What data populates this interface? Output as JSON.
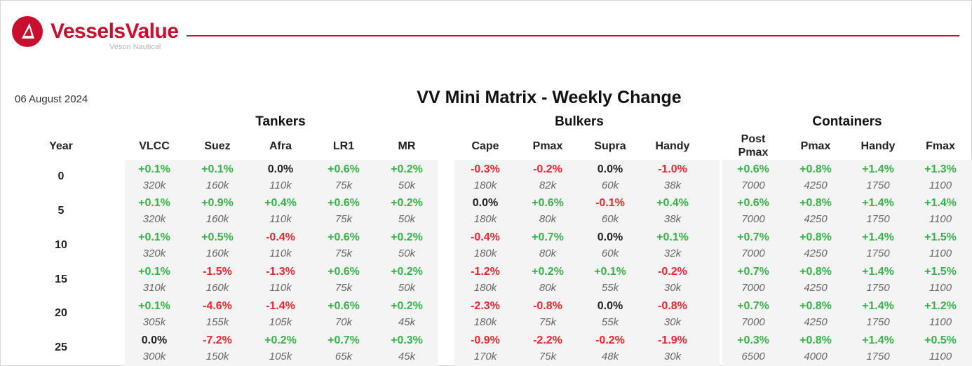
{
  "brand": {
    "name": "VesselsValue",
    "sub": "Veson Nautical",
    "accent": "#c8102e"
  },
  "report": {
    "date": "06 August 2024",
    "title": "VV Mini Matrix - Weekly Change"
  },
  "colors": {
    "positive": "#37b34a",
    "negative": "#e8262e",
    "neutral": "#222222",
    "size_text": "#666666"
  },
  "year_header": "Year",
  "years": [
    "0",
    "5",
    "10",
    "15",
    "20",
    "25"
  ],
  "sections": [
    {
      "title": "Tankers",
      "columns": [
        "VLCC",
        "Suez",
        "Afra",
        "LR1",
        "MR"
      ],
      "rows": [
        [
          [
            "+0.1%",
            "320k"
          ],
          [
            "+0.1%",
            "160k"
          ],
          [
            "0.0%",
            "110k"
          ],
          [
            "+0.6%",
            "75k"
          ],
          [
            "+0.2%",
            "50k"
          ]
        ],
        [
          [
            "+0.1%",
            "320k"
          ],
          [
            "+0.9%",
            "160k"
          ],
          [
            "+0.4%",
            "110k"
          ],
          [
            "+0.6%",
            "75k"
          ],
          [
            "+0.2%",
            "50k"
          ]
        ],
        [
          [
            "+0.1%",
            "320k"
          ],
          [
            "+0.5%",
            "160k"
          ],
          [
            "-0.4%",
            "110k"
          ],
          [
            "+0.6%",
            "75k"
          ],
          [
            "+0.2%",
            "50k"
          ]
        ],
        [
          [
            "+0.1%",
            "310k"
          ],
          [
            "-1.5%",
            "160k"
          ],
          [
            "-1.3%",
            "110k"
          ],
          [
            "+0.6%",
            "75k"
          ],
          [
            "+0.2%",
            "50k"
          ]
        ],
        [
          [
            "+0.1%",
            "305k"
          ],
          [
            "-4.6%",
            "155k"
          ],
          [
            "-1.4%",
            "105k"
          ],
          [
            "+0.6%",
            "70k"
          ],
          [
            "+0.2%",
            "45k"
          ]
        ],
        [
          [
            "0.0%",
            "300k"
          ],
          [
            "-7.2%",
            "150k"
          ],
          [
            "+0.2%",
            "105k"
          ],
          [
            "+0.7%",
            "65k"
          ],
          [
            "+0.3%",
            "45k"
          ]
        ]
      ]
    },
    {
      "title": "Bulkers",
      "columns": [
        "Cape",
        "Pmax",
        "Supra",
        "Handy"
      ],
      "rows": [
        [
          [
            "-0.3%",
            "180k"
          ],
          [
            "-0.2%",
            "82k"
          ],
          [
            "0.0%",
            "60k"
          ],
          [
            "-1.0%",
            "38k"
          ]
        ],
        [
          [
            "0.0%",
            "180k"
          ],
          [
            "+0.6%",
            "80k"
          ],
          [
            "-0.1%",
            "60k"
          ],
          [
            "+0.4%",
            "38k"
          ]
        ],
        [
          [
            "-0.4%",
            "180k"
          ],
          [
            "+0.7%",
            "80k"
          ],
          [
            "0.0%",
            "60k"
          ],
          [
            "+0.1%",
            "32k"
          ]
        ],
        [
          [
            "-1.2%",
            "180k"
          ],
          [
            "+0.2%",
            "80k"
          ],
          [
            "+0.1%",
            "55k"
          ],
          [
            "-0.2%",
            "30k"
          ]
        ],
        [
          [
            "-2.3%",
            "180k"
          ],
          [
            "-0.8%",
            "75k"
          ],
          [
            "0.0%",
            "55k"
          ],
          [
            "-0.8%",
            "30k"
          ]
        ],
        [
          [
            "-0.9%",
            "170k"
          ],
          [
            "-2.2%",
            "75k"
          ],
          [
            "-0.2%",
            "48k"
          ],
          [
            "-1.9%",
            "30k"
          ]
        ]
      ]
    },
    {
      "title": "Containers",
      "columns": [
        "Post\nPmax",
        "Pmax",
        "Handy",
        "Fmax"
      ],
      "rows": [
        [
          [
            "+0.6%",
            "7000"
          ],
          [
            "+0.8%",
            "4250"
          ],
          [
            "+1.4%",
            "1750"
          ],
          [
            "+1.3%",
            "1100"
          ]
        ],
        [
          [
            "+0.6%",
            "7000"
          ],
          [
            "+0.8%",
            "4250"
          ],
          [
            "+1.4%",
            "1750"
          ],
          [
            "+1.4%",
            "1100"
          ]
        ],
        [
          [
            "+0.7%",
            "7000"
          ],
          [
            "+0.8%",
            "4250"
          ],
          [
            "+1.4%",
            "1750"
          ],
          [
            "+1.5%",
            "1100"
          ]
        ],
        [
          [
            "+0.7%",
            "7000"
          ],
          [
            "+0.8%",
            "4250"
          ],
          [
            "+1.4%",
            "1750"
          ],
          [
            "+1.5%",
            "1100"
          ]
        ],
        [
          [
            "+0.7%",
            "7000"
          ],
          [
            "+0.8%",
            "4250"
          ],
          [
            "+1.4%",
            "1750"
          ],
          [
            "+1.2%",
            "1100"
          ]
        ],
        [
          [
            "+0.3%",
            "6500"
          ],
          [
            "+0.8%",
            "4000"
          ],
          [
            "+1.4%",
            "1750"
          ],
          [
            "+0.5%",
            "1100"
          ]
        ]
      ]
    }
  ]
}
